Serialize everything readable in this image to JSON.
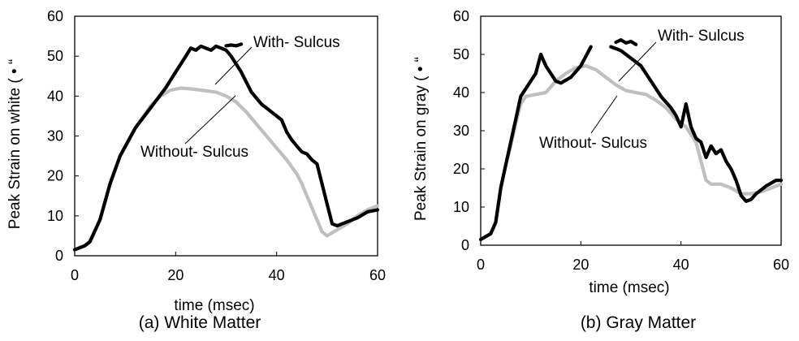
{
  "chart_data": [
    {
      "type": "line",
      "caption": "(a) White Matter",
      "xlabel": "time (msec)",
      "ylabel": "Peak Strain on white ( • “",
      "xlim": [
        0,
        60
      ],
      "ylim": [
        0,
        60
      ],
      "xticks": [
        "0",
        "20",
        "40",
        "60"
      ],
      "yticks": [
        "0",
        "10",
        "20",
        "30",
        "40",
        "50",
        "60"
      ],
      "grid": false,
      "annotations": [
        "With- Sulcus",
        "Without- Sulcus"
      ],
      "series": [
        {
          "name": "With- Sulcus",
          "color": "#000000",
          "segments": [
            [
              [
                0,
                1.5
              ],
              [
                2,
                2.5
              ],
              [
                3,
                3.5
              ],
              [
                5,
                9
              ],
              [
                7,
                18
              ],
              [
                9,
                25
              ],
              [
                12,
                32
              ],
              [
                15,
                37
              ],
              [
                18,
                42
              ],
              [
                20,
                46
              ],
              [
                22,
                50
              ],
              [
                23,
                52
              ],
              [
                24,
                51.5
              ],
              [
                25,
                52.5
              ],
              [
                26,
                52
              ],
              [
                27,
                51.5
              ],
              [
                28,
                52.5
              ],
              [
                29,
                52
              ],
              [
                30,
                51.5
              ],
              [
                31,
                50
              ],
              [
                33,
                46
              ],
              [
                35,
                41
              ],
              [
                37,
                38
              ],
              [
                39,
                36
              ],
              [
                41,
                34
              ],
              [
                42,
                31
              ],
              [
                43,
                29
              ],
              [
                44,
                27.5
              ],
              [
                45,
                26
              ],
              [
                46,
                25.5
              ],
              [
                47,
                24
              ],
              [
                48,
                23
              ],
              [
                49,
                18
              ],
              [
                50,
                13
              ],
              [
                51,
                8
              ],
              [
                52,
                7.5
              ],
              [
                54,
                8.5
              ],
              [
                56,
                9.5
              ],
              [
                58,
                11
              ],
              [
                60,
                11.5
              ]
            ],
            [
              [
                30,
                52.6
              ],
              [
                31,
                52.8
              ],
              [
                32,
                52.6
              ],
              [
                33,
                53
              ]
            ]
          ]
        },
        {
          "name": "Without- Sulcus",
          "color": "#bfbfbf",
          "segments": [
            [
              [
                0,
                1.5
              ],
              [
                2,
                2.5
              ],
              [
                3,
                3.5
              ],
              [
                5,
                9
              ],
              [
                7,
                18
              ],
              [
                9,
                25
              ],
              [
                12,
                32
              ],
              [
                15,
                37.5
              ],
              [
                17,
                40
              ],
              [
                19,
                41.5
              ],
              [
                21,
                42
              ],
              [
                23,
                41.8
              ],
              [
                25,
                41.5
              ],
              [
                28,
                41
              ],
              [
                30,
                40
              ],
              [
                32,
                38.5
              ],
              [
                34,
                36
              ],
              [
                36,
                33
              ],
              [
                38,
                30
              ],
              [
                40,
                27
              ],
              [
                42,
                24
              ],
              [
                44,
                20.5
              ],
              [
                45,
                18
              ],
              [
                46,
                15
              ],
              [
                47,
                12
              ],
              [
                48,
                9
              ],
              [
                49,
                6
              ],
              [
                50,
                5
              ],
              [
                52,
                6.5
              ],
              [
                54,
                8
              ],
              [
                56,
                10
              ],
              [
                58,
                11.5
              ],
              [
                60,
                12.5
              ]
            ]
          ]
        }
      ]
    },
    {
      "type": "line",
      "caption": "(b) Gray Matter",
      "xlabel": "time (msec)",
      "ylabel": "Peak Strain on gray ( • “",
      "xlim": [
        0,
        60
      ],
      "ylim": [
        0,
        60
      ],
      "xticks": [
        "0",
        "20",
        "40",
        "60"
      ],
      "yticks": [
        "0",
        "10",
        "20",
        "30",
        "40",
        "50",
        "60"
      ],
      "grid": false,
      "annotations": [
        "With- Sulcus",
        "Without- Sulcus"
      ],
      "series": [
        {
          "name": "With- Sulcus",
          "color": "#000000",
          "segments": [
            [
              [
                0,
                1.5
              ],
              [
                2,
                3
              ],
              [
                3,
                6
              ],
              [
                4,
                15
              ],
              [
                5,
                21
              ],
              [
                6,
                27
              ],
              [
                7,
                33
              ],
              [
                8,
                39
              ],
              [
                9,
                41
              ],
              [
                10,
                43
              ],
              [
                11,
                45
              ],
              [
                12,
                50
              ],
              [
                13,
                47
              ],
              [
                14,
                45
              ],
              [
                15,
                43
              ],
              [
                16,
                42.5
              ],
              [
                18,
                44
              ],
              [
                20,
                47
              ],
              [
                22,
                52
              ]
            ],
            [
              [
                26,
                52
              ],
              [
                28,
                51
              ],
              [
                30,
                49
              ],
              [
                32,
                47
              ],
              [
                34,
                43
              ],
              [
                36,
                39
              ],
              [
                38,
                36
              ],
              [
                39,
                34
              ],
              [
                40,
                31
              ],
              [
                41,
                37
              ],
              [
                42,
                31
              ],
              [
                43,
                28
              ],
              [
                44,
                27
              ],
              [
                45,
                23
              ],
              [
                46,
                26
              ],
              [
                47,
                24
              ],
              [
                48,
                25
              ],
              [
                49,
                22
              ],
              [
                50,
                20
              ],
              [
                51,
                17
              ],
              [
                52,
                13
              ],
              [
                53,
                11.5
              ],
              [
                54,
                12
              ],
              [
                55,
                13.5
              ],
              [
                57,
                15.5
              ],
              [
                59,
                17
              ],
              [
                60,
                17
              ]
            ],
            [
              [
                27,
                53.2
              ],
              [
                28,
                53.8
              ],
              [
                29,
                53
              ],
              [
                30,
                53.4
              ],
              [
                31,
                52.6
              ]
            ]
          ]
        },
        {
          "name": "Without- Sulcus",
          "color": "#bfbfbf",
          "segments": [
            [
              [
                0,
                1.5
              ],
              [
                2,
                3
              ],
              [
                3,
                6
              ],
              [
                4,
                15
              ],
              [
                5,
                21
              ],
              [
                6,
                26
              ],
              [
                7,
                32
              ],
              [
                8,
                37
              ],
              [
                9,
                39
              ],
              [
                11,
                39.5
              ],
              [
                13,
                40
              ],
              [
                15,
                43
              ],
              [
                17,
                45
              ],
              [
                19,
                46.5
              ],
              [
                21,
                47
              ],
              [
                23,
                46
              ],
              [
                25,
                44
              ],
              [
                27,
                42
              ],
              [
                29,
                40.5
              ],
              [
                31,
                40
              ],
              [
                33,
                39.5
              ],
              [
                35,
                38
              ],
              [
                37,
                36
              ],
              [
                39,
                33
              ],
              [
                41,
                31
              ],
              [
                43,
                27
              ],
              [
                44,
                22
              ],
              [
                45,
                17
              ],
              [
                46,
                16
              ],
              [
                48,
                16
              ],
              [
                50,
                15
              ],
              [
                52,
                13.5
              ],
              [
                54,
                13.5
              ],
              [
                56,
                14
              ],
              [
                58,
                15
              ],
              [
                60,
                16
              ]
            ]
          ]
        }
      ]
    }
  ]
}
